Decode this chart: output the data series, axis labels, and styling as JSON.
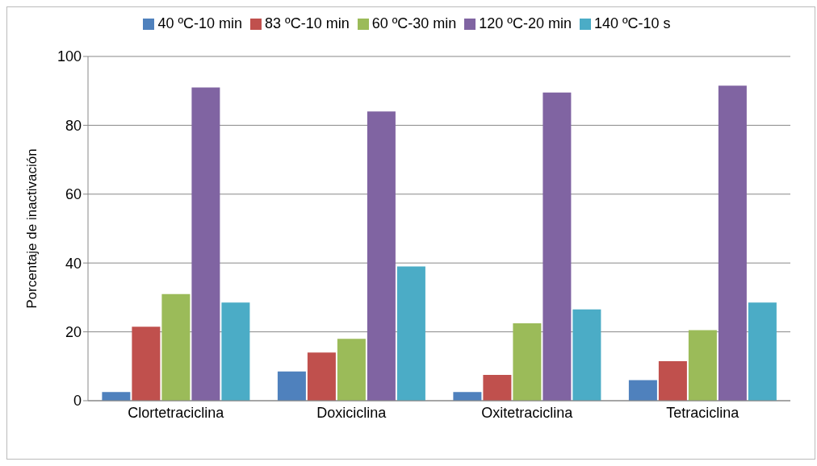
{
  "chart_data": {
    "type": "bar",
    "ylabel": "Porcentaje de inactivación",
    "categories": [
      "Clortetraciclina",
      "Doxiciclina",
      "Oxitetraciclina",
      "Tetraciclina"
    ],
    "series": [
      {
        "name": "40 ºC-10 min",
        "color": "#4f81bd",
        "values": [
          2.5,
          8.5,
          2.5,
          6
        ]
      },
      {
        "name": "83 ºC-10 min",
        "color": "#c0504d",
        "values": [
          21.5,
          14,
          7.5,
          11.5
        ]
      },
      {
        "name": "60 ºC-30 min",
        "color": "#9bbb59",
        "values": [
          31,
          18,
          22.5,
          20.5
        ]
      },
      {
        "name": "120 ºC-20 min",
        "color": "#8064a2",
        "values": [
          91,
          84,
          89.5,
          91.5
        ]
      },
      {
        "name": "140 ºC-10 s",
        "color": "#4bacc6",
        "values": [
          28.5,
          39,
          26.5,
          28.5
        ]
      }
    ],
    "ylim": [
      0,
      100
    ],
    "yticks": [
      0,
      20,
      40,
      60,
      80,
      100
    ],
    "grid": "y",
    "legend": "top"
  }
}
